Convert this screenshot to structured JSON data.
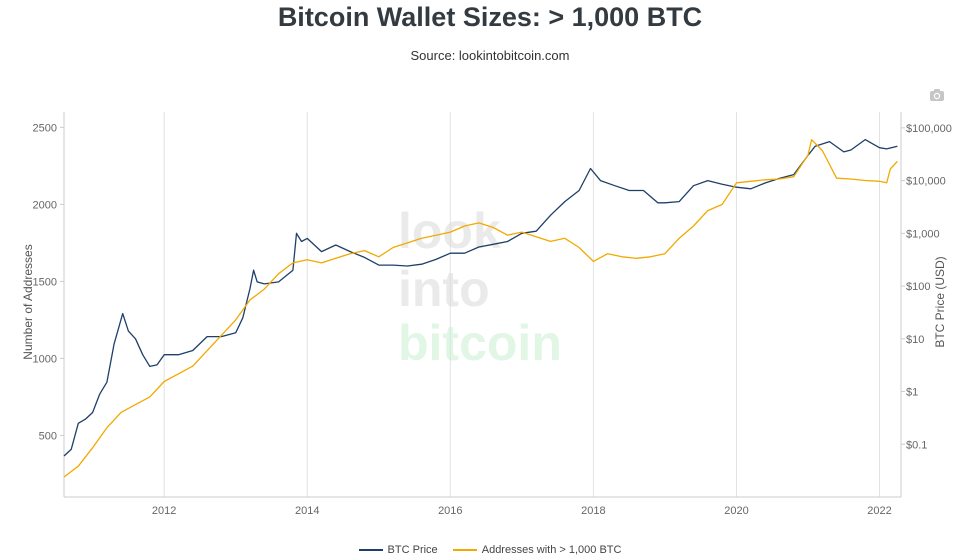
{
  "chart_data": {
    "type": "line",
    "title": "Bitcoin Wallet Sizes: > 1,000 BTC",
    "subtitle": "Source: lookintobitcoin.com",
    "watermark": [
      "look",
      "into",
      "bitcoin"
    ],
    "ylabel_left": "Number of Addresses",
    "ylabel_right": "BTC Price (USD)",
    "x_range": [
      2010.6,
      2022.3
    ],
    "ylim_left": [
      100,
      2600
    ],
    "ylim_right_log": [
      0.01,
      200000
    ],
    "right_scale": "log",
    "grid": "vertical",
    "x_ticks": [
      "2012",
      "2014",
      "2016",
      "2018",
      "2020",
      "2022"
    ],
    "y_ticks_left": [
      "500",
      "1000",
      "1500",
      "2000",
      "2500"
    ],
    "y_ticks_right": [
      "$0.1",
      "$1",
      "$10",
      "$100",
      "$1,000",
      "$10,000",
      "$100,000"
    ],
    "legend_position": "bottom",
    "series": [
      {
        "name": "BTC Price",
        "axis": "right",
        "color": "#1f3f68",
        "x": [
          2010.6,
          2010.7,
          2010.8,
          2010.9,
          2011.0,
          2011.1,
          2011.2,
          2011.3,
          2011.42,
          2011.5,
          2011.6,
          2011.7,
          2011.8,
          2011.9,
          2012.0,
          2012.2,
          2012.4,
          2012.6,
          2012.8,
          2013.0,
          2013.1,
          2013.2,
          2013.25,
          2013.3,
          2013.4,
          2013.6,
          2013.8,
          2013.85,
          2013.92,
          2014.0,
          2014.1,
          2014.2,
          2014.4,
          2014.6,
          2014.8,
          2015.0,
          2015.2,
          2015.4,
          2015.6,
          2015.8,
          2016.0,
          2016.2,
          2016.4,
          2016.6,
          2016.8,
          2017.0,
          2017.2,
          2017.4,
          2017.6,
          2017.8,
          2017.96,
          2018.1,
          2018.3,
          2018.5,
          2018.7,
          2018.9,
          2019.0,
          2019.2,
          2019.4,
          2019.6,
          2019.8,
          2020.0,
          2020.2,
          2020.4,
          2020.6,
          2020.8,
          2021.0,
          2021.1,
          2021.3,
          2021.5,
          2021.6,
          2021.8,
          2021.9,
          2022.0,
          2022.1,
          2022.25
        ],
        "y": [
          0.06,
          0.08,
          0.25,
          0.3,
          0.4,
          0.9,
          1.5,
          8,
          30,
          14,
          10,
          5,
          3,
          3.2,
          5,
          5,
          6,
          11,
          11,
          13,
          25,
          90,
          200,
          120,
          110,
          120,
          200,
          1000,
          700,
          800,
          600,
          450,
          600,
          450,
          350,
          250,
          250,
          240,
          260,
          320,
          420,
          420,
          550,
          620,
          700,
          1000,
          1100,
          2200,
          4000,
          6500,
          17000,
          10000,
          8000,
          6500,
          6500,
          3800,
          3800,
          4000,
          8000,
          10000,
          8500,
          7500,
          7000,
          9000,
          11000,
          13000,
          30000,
          45000,
          55000,
          35000,
          38000,
          60000,
          50000,
          42000,
          40000,
          45000
        ]
      },
      {
        "name": "Addresses with > 1,000 BTC",
        "axis": "left",
        "color": "#f2a900",
        "x": [
          2010.6,
          2010.8,
          2011.0,
          2011.2,
          2011.4,
          2011.6,
          2011.8,
          2012.0,
          2012.2,
          2012.4,
          2012.6,
          2012.8,
          2013.0,
          2013.2,
          2013.4,
          2013.6,
          2013.8,
          2014.0,
          2014.2,
          2014.4,
          2014.6,
          2014.8,
          2015.0,
          2015.2,
          2015.4,
          2015.6,
          2015.8,
          2016.0,
          2016.2,
          2016.4,
          2016.6,
          2016.8,
          2017.0,
          2017.2,
          2017.4,
          2017.6,
          2017.8,
          2018.0,
          2018.2,
          2018.4,
          2018.6,
          2018.8,
          2019.0,
          2019.2,
          2019.4,
          2019.6,
          2019.8,
          2020.0,
          2020.2,
          2020.4,
          2020.6,
          2020.8,
          2021.0,
          2021.05,
          2021.2,
          2021.4,
          2021.6,
          2021.8,
          2022.0,
          2022.1,
          2022.15,
          2022.25
        ],
        "y": [
          230,
          300,
          420,
          550,
          650,
          700,
          750,
          850,
          900,
          950,
          1050,
          1150,
          1250,
          1380,
          1450,
          1550,
          1620,
          1640,
          1620,
          1650,
          1680,
          1700,
          1660,
          1720,
          1750,
          1780,
          1800,
          1820,
          1860,
          1880,
          1850,
          1800,
          1820,
          1790,
          1760,
          1780,
          1720,
          1630,
          1680,
          1660,
          1650,
          1660,
          1680,
          1780,
          1860,
          1960,
          2000,
          2140,
          2150,
          2160,
          2165,
          2180,
          2320,
          2420,
          2350,
          2170,
          2165,
          2155,
          2150,
          2140,
          2230,
          2280
        ]
      }
    ]
  }
}
